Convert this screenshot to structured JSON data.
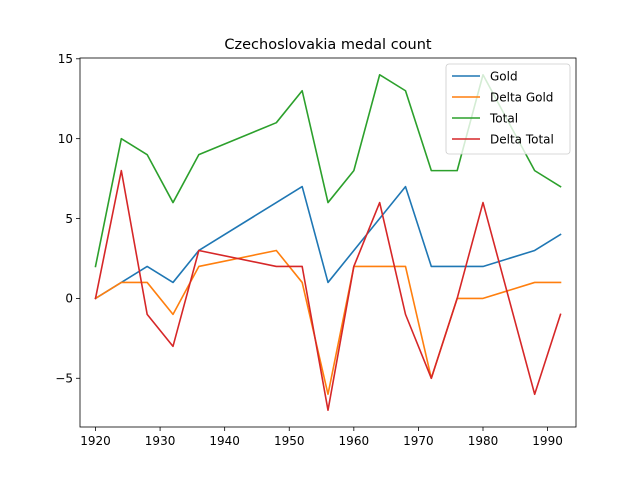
{
  "chart_data": {
    "type": "line",
    "title": "Czechoslovakia medal count",
    "xlabel": "",
    "ylabel": "",
    "xlim": [
      1917.6,
      1994.4
    ],
    "ylim": [
      -8.05,
      15.05
    ],
    "xticks": [
      1920,
      1930,
      1940,
      1950,
      1960,
      1970,
      1980,
      1990
    ],
    "yticks": [
      -5,
      0,
      5,
      10,
      15
    ],
    "grid": false,
    "legend_position": "top-right",
    "series": [
      {
        "name": "Gold",
        "color": "#1f77b4",
        "x": [
          1920,
          1924,
          1928,
          1932,
          1936,
          1948,
          1952,
          1956,
          1960,
          1964,
          1968,
          1972,
          1976,
          1980,
          1988,
          1992
        ],
        "y": [
          0,
          1,
          2,
          1,
          3,
          6,
          7,
          1,
          3,
          5,
          7,
          2,
          2,
          2,
          3,
          4
        ]
      },
      {
        "name": "Delta Gold",
        "color": "#ff7f0e",
        "x": [
          1920,
          1924,
          1928,
          1932,
          1936,
          1948,
          1952,
          1956,
          1960,
          1964,
          1968,
          1972,
          1976,
          1980,
          1988,
          1992
        ],
        "y": [
          0,
          1,
          1,
          -1,
          2,
          3,
          1,
          -6,
          2,
          2,
          2,
          -5,
          0,
          0,
          1,
          1
        ]
      },
      {
        "name": "Total",
        "color": "#2ca02c",
        "x": [
          1920,
          1924,
          1928,
          1932,
          1936,
          1948,
          1952,
          1956,
          1960,
          1964,
          1968,
          1972,
          1976,
          1980,
          1988,
          1992
        ],
        "y": [
          2,
          10,
          9,
          6,
          9,
          11,
          13,
          6,
          8,
          14,
          13,
          8,
          8,
          14,
          8,
          7
        ]
      },
      {
        "name": "Delta Total",
        "color": "#d62728",
        "x": [
          1920,
          1924,
          1928,
          1932,
          1936,
          1948,
          1952,
          1956,
          1960,
          1964,
          1968,
          1972,
          1976,
          1980,
          1988,
          1992
        ],
        "y": [
          0,
          8,
          -1,
          -3,
          3,
          2,
          2,
          -7,
          2,
          6,
          -1,
          -5,
          0,
          6,
          -6,
          -1
        ]
      }
    ]
  }
}
